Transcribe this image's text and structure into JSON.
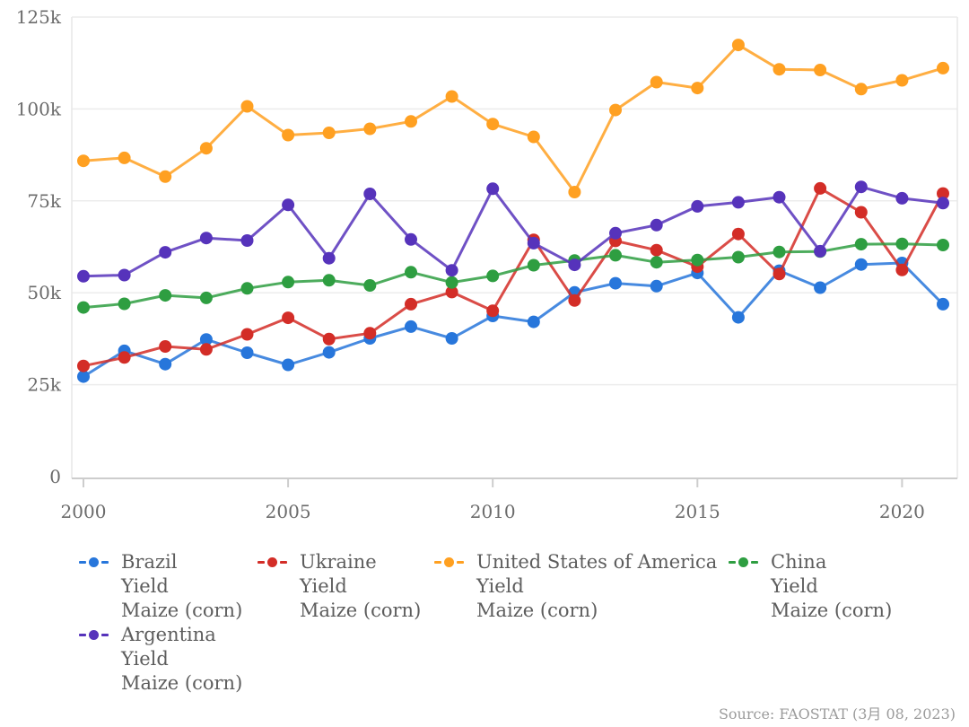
{
  "chart_data": {
    "type": "line",
    "title": "",
    "x": [
      2000,
      2001,
      2002,
      2003,
      2004,
      2005,
      2006,
      2007,
      2008,
      2009,
      2010,
      2011,
      2012,
      2013,
      2014,
      2015,
      2016,
      2017,
      2018,
      2019,
      2020,
      2021
    ],
    "xtick_years": [
      2000,
      2005,
      2010,
      2015,
      2020
    ],
    "xtick_labels": [
      "2000",
      "2005",
      "2010",
      "2015",
      "2020"
    ],
    "ylim": [
      0,
      125000
    ],
    "ytick_values": [
      0,
      25000,
      50000,
      75000,
      100000,
      125000
    ],
    "ytick_labels": [
      "0",
      "25k",
      "50k",
      "75k",
      "100k",
      "125k"
    ],
    "grid": "horizontal",
    "legend_position": "bottom",
    "series": [
      {
        "name": "Brazil",
        "metric": "Yield",
        "item": "Maize (corn)",
        "color": "#2776DB",
        "values": [
          27200,
          34200,
          30600,
          37300,
          33700,
          30400,
          33800,
          37600,
          40800,
          37600,
          43700,
          42100,
          50100,
          52600,
          51800,
          55400,
          43300,
          56000,
          51400,
          57700,
          58100,
          46900
        ]
      },
      {
        "name": "Ukraine",
        "metric": "Yield",
        "item": "Maize (corn)",
        "color": "#D32D27",
        "values": [
          30100,
          32400,
          35400,
          34600,
          38700,
          43200,
          37400,
          39000,
          46900,
          50200,
          45100,
          64400,
          47900,
          64100,
          61600,
          57100,
          66000,
          55100,
          78400,
          71900,
          56200,
          77000
        ]
      },
      {
        "name": "United States of America",
        "metric": "Yield",
        "item": "Maize (corn)",
        "color": "#FFA021",
        "values": [
          85900,
          86700,
          81600,
          89300,
          100700,
          92900,
          93500,
          94600,
          96600,
          103400,
          95900,
          92400,
          77400,
          99700,
          107300,
          105700,
          117400,
          110800,
          110600,
          105400,
          107800,
          111100
        ]
      },
      {
        "name": "China",
        "metric": "Yield",
        "item": "Maize (corn)",
        "color": "#2E9E41",
        "values": [
          46000,
          47000,
          49300,
          48600,
          51200,
          52900,
          53400,
          52000,
          55600,
          52800,
          54600,
          57500,
          58800,
          60200,
          58300,
          58900,
          59700,
          61100,
          61200,
          63200,
          63300,
          63000
        ]
      },
      {
        "name": "Argentina",
        "metric": "Yield",
        "item": "Maize (corn)",
        "color": "#5633BB",
        "values": [
          54500,
          54800,
          61000,
          64900,
          64200,
          73900,
          59400,
          76900,
          64500,
          56100,
          78300,
          63500,
          57600,
          66200,
          68400,
          73500,
          74600,
          76000,
          61300,
          78800,
          75700,
          74400
        ]
      }
    ]
  },
  "source_note": "Source: FAOSTAT (3月 08, 2023)"
}
